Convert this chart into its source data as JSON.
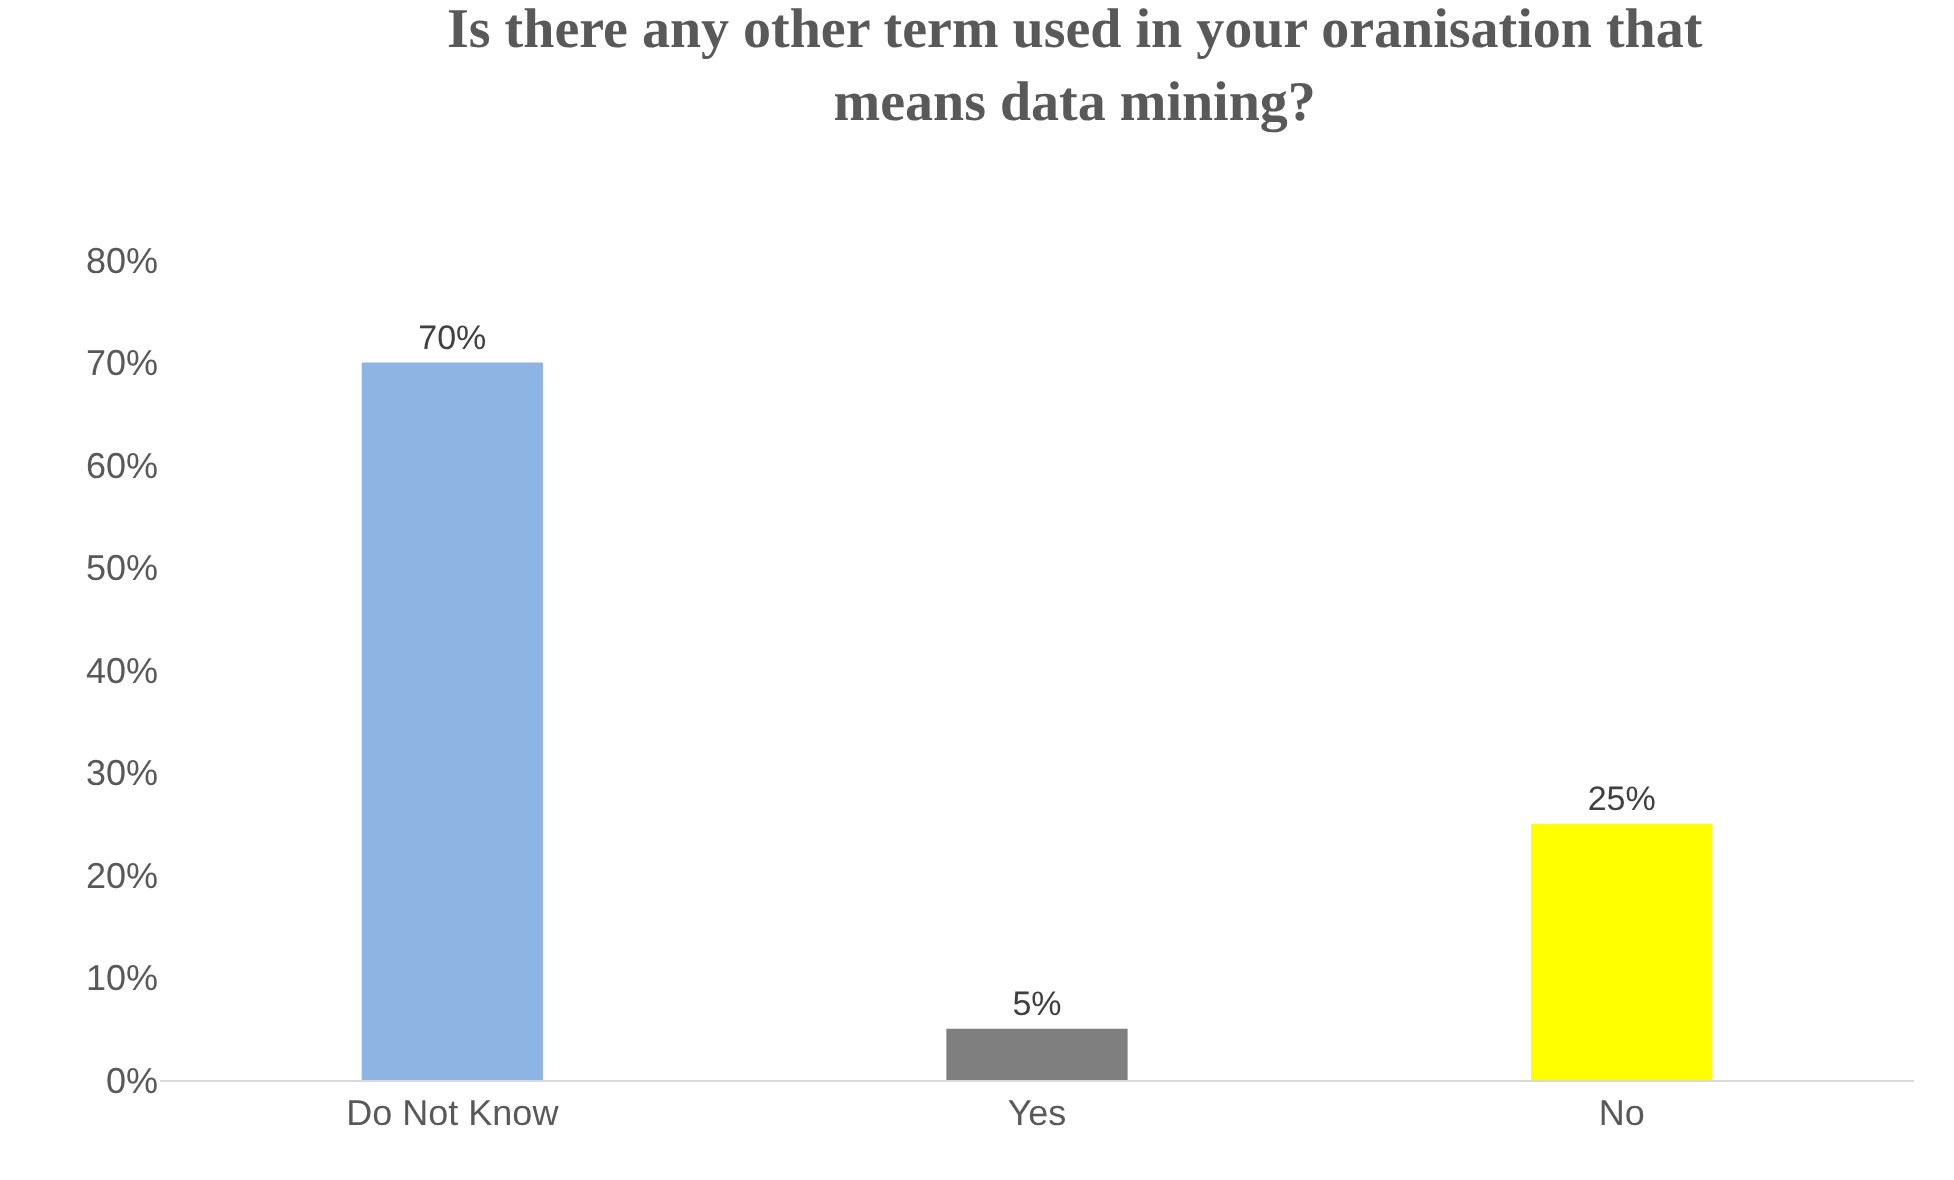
{
  "chart_data": {
    "type": "bar",
    "title": "Is there any other term used in your oranisation that means data mining?",
    "categories": [
      "Do Not Know",
      "Yes",
      "No"
    ],
    "values": [
      70,
      5,
      25
    ],
    "colors": [
      "#8eb4e3",
      "#7f7f7f",
      "#ffff00"
    ],
    "value_labels": [
      "70%",
      "5%",
      "25%"
    ],
    "ylim": [
      0,
      80
    ],
    "yticks": [
      {
        "value": 0,
        "label": "0%"
      },
      {
        "value": 10,
        "label": "10%"
      },
      {
        "value": 20,
        "label": "20%"
      },
      {
        "value": 30,
        "label": "30%"
      },
      {
        "value": 40,
        "label": "40%"
      },
      {
        "value": 50,
        "label": "50%"
      },
      {
        "value": 60,
        "label": "60%"
      },
      {
        "value": 70,
        "label": "70%"
      },
      {
        "value": 80,
        "label": "80%"
      }
    ],
    "grid": false
  }
}
